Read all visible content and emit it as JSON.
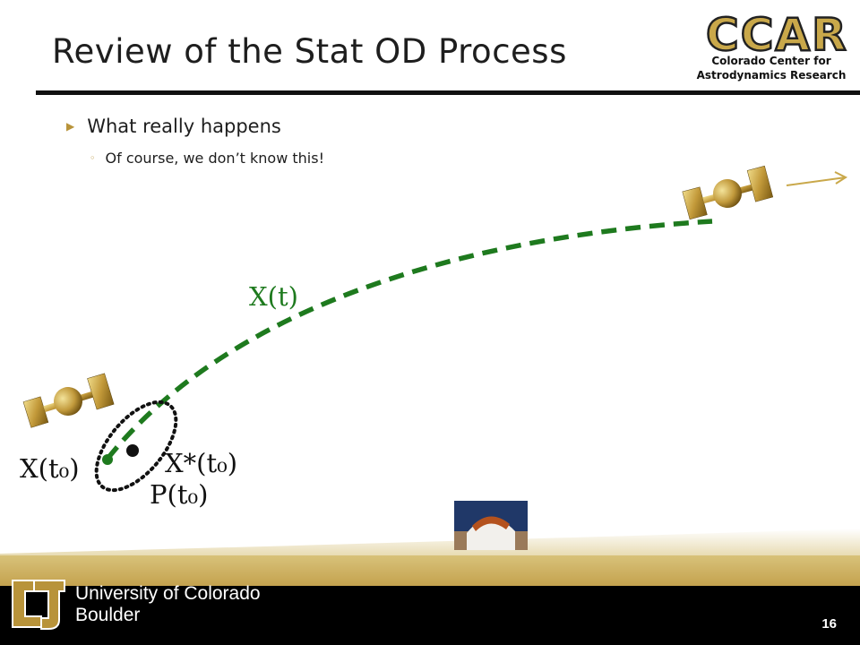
{
  "slide": {
    "title": "Review of the Stat OD Process",
    "logo": {
      "big": "CCAR",
      "line1": "Colorado Center for",
      "line2": "Astrodynamics Research"
    },
    "bullet": "What really happens",
    "subbullet": "Of course, we don’t know this!",
    "labels": {
      "trajectory": "X(t)",
      "true_initial": "X(t₀)",
      "reference_initial": "X*(t₀)",
      "covariance": "P(t₀)"
    },
    "footer": {
      "university_line1": "University of Colorado",
      "university_line2": "Boulder",
      "page_number": "16"
    },
    "colors": {
      "trajectory": "#1e7a1e",
      "gold": "#c9a84a",
      "footer": "#000000"
    },
    "icons": [
      "satellite-icon",
      "satellite-icon",
      "observatory-photo",
      "cu-logo-icon",
      "ccar-logo"
    ]
  }
}
